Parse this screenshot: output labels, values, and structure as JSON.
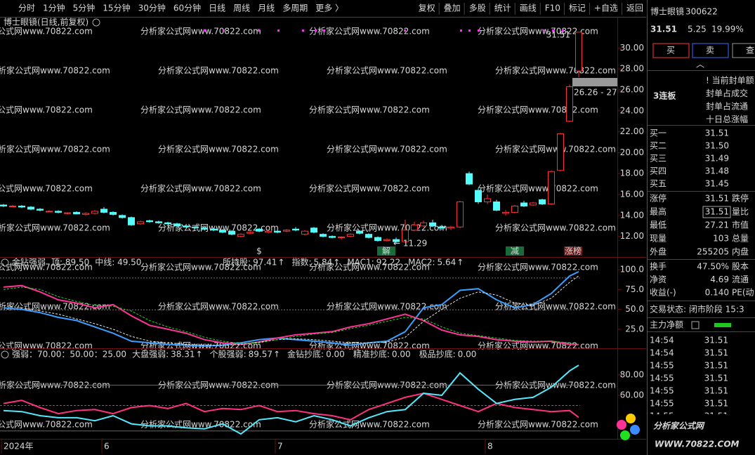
{
  "watermark": "分析家公式网www.70822.com",
  "toolbar": {
    "periods": [
      "分时",
      "1分钟",
      "5分钟",
      "15分钟",
      "30分钟",
      "60分钟",
      "日线",
      "周线",
      "月线",
      "多周期",
      "更多 〉"
    ],
    "active": 6,
    "tools": [
      "复权",
      "叠加",
      "多股",
      "统计",
      "画线",
      "F10",
      "标记",
      "+自选",
      "返回"
    ]
  },
  "chart_data": [
    {
      "type": "candlestick",
      "title": "博士眼镜(日线,前复权)",
      "up_color": "#ff3232",
      "down_color": "#54fcfc",
      "candles": [
        [
          15.0,
          15.1,
          14.8,
          14.9
        ],
        [
          14.9,
          15.0,
          14.8,
          14.9
        ],
        [
          14.9,
          15.0,
          14.7,
          14.8
        ],
        [
          14.8,
          14.9,
          14.5,
          14.6
        ],
        [
          14.6,
          14.7,
          14.4,
          14.5
        ],
        [
          14.4,
          14.5,
          14.3,
          14.4
        ],
        [
          14.4,
          14.5,
          14.2,
          14.3
        ],
        [
          14.2,
          14.3,
          14.1,
          14.25
        ],
        [
          14.3,
          14.4,
          14.1,
          14.15
        ],
        [
          14.1,
          14.3,
          14.0,
          14.2
        ],
        [
          14.2,
          14.5,
          14.1,
          14.4
        ],
        [
          14.6,
          14.8,
          14.2,
          14.3
        ],
        [
          14.3,
          14.4,
          14.0,
          14.1
        ],
        [
          14.0,
          14.1,
          13.7,
          13.8
        ],
        [
          13.8,
          13.9,
          13.0,
          13.1
        ],
        [
          13.2,
          13.5,
          13.1,
          13.4
        ],
        [
          13.5,
          13.6,
          13.3,
          13.4
        ],
        [
          13.4,
          13.5,
          13.2,
          13.3
        ],
        [
          13.3,
          13.4,
          13.1,
          13.2
        ],
        [
          13.2,
          13.3,
          12.9,
          13.0
        ],
        [
          13.0,
          13.1,
          12.8,
          12.9
        ],
        [
          12.9,
          13.0,
          12.7,
          12.85
        ],
        [
          12.8,
          12.9,
          12.6,
          12.7
        ],
        [
          12.7,
          12.8,
          12.5,
          12.6
        ],
        [
          12.6,
          12.7,
          12.3,
          12.4
        ],
        [
          12.5,
          12.6,
          12.1,
          12.2
        ],
        [
          12.0,
          12.3,
          11.9,
          12.2
        ],
        [
          12.3,
          12.5,
          12.2,
          12.4
        ],
        [
          12.7,
          12.8,
          12.4,
          12.5
        ],
        [
          12.4,
          12.6,
          12.3,
          12.5
        ],
        [
          12.5,
          12.6,
          12.3,
          12.4
        ],
        [
          12.5,
          12.7,
          12.4,
          12.6
        ],
        [
          12.7,
          12.9,
          12.5,
          12.6
        ],
        [
          12.2,
          12.6,
          12.1,
          12.5
        ],
        [
          12.8,
          12.9,
          12.3,
          12.4
        ],
        [
          12.2,
          12.3,
          11.9,
          12.0
        ],
        [
          12.0,
          12.1,
          11.8,
          11.9
        ],
        [
          11.9,
          12.0,
          11.7,
          11.95
        ],
        [
          12.0,
          12.3,
          11.9,
          12.2
        ],
        [
          12.5,
          12.6,
          12.2,
          12.3
        ],
        [
          12.2,
          12.3,
          11.8,
          11.9
        ],
        [
          11.9,
          12.0,
          11.5,
          11.6
        ],
        [
          11.6,
          11.8,
          11.5,
          11.7
        ],
        [
          11.7,
          11.9,
          11.29,
          11.5
        ],
        [
          11.5,
          13.6,
          11.4,
          12.6
        ],
        [
          12.6,
          13.4,
          12.5,
          13.1
        ],
        [
          13.0,
          13.5,
          12.9,
          13.3
        ],
        [
          13.3,
          13.6,
          12.9,
          13.0
        ],
        [
          12.9,
          13.1,
          12.6,
          12.8
        ],
        [
          12.8,
          13.0,
          12.6,
          12.9
        ],
        [
          12.9,
          15.4,
          12.8,
          15.3
        ],
        [
          18.0,
          18.2,
          16.9,
          17.0
        ],
        [
          16.4,
          16.6,
          15.1,
          15.3
        ],
        [
          15.3,
          16.0,
          15.1,
          15.6
        ],
        [
          15.3,
          15.5,
          14.4,
          14.5
        ],
        [
          14.2,
          14.5,
          14.0,
          14.3
        ],
        [
          14.3,
          15.0,
          14.2,
          14.9
        ],
        [
          15.2,
          15.4,
          14.8,
          14.9
        ],
        [
          15.0,
          15.3,
          14.9,
          15.2
        ],
        [
          15.5,
          15.6,
          15.0,
          15.1
        ],
        [
          15.1,
          18.3,
          15.0,
          18.2
        ],
        [
          18.3,
          21.9,
          18.2,
          21.8
        ],
        [
          23.0,
          26.5,
          22.9,
          26.3
        ],
        [
          27.8,
          31.51,
          27.21,
          31.51
        ]
      ],
      "ylim": [
        10.1,
        31.9
      ],
      "yticks": [
        {
          "value": 30,
          "label": "30.00"
        },
        {
          "value": 28,
          "label": "28.00"
        },
        {
          "value": 26,
          "label": "26.00"
        },
        {
          "value": 24,
          "label": "24.00"
        },
        {
          "value": 22,
          "label": "22.00"
        },
        {
          "value": 20,
          "label": "20.00"
        },
        {
          "value": 18,
          "label": "18.00"
        },
        {
          "value": 16,
          "label": "16.00"
        },
        {
          "value": 14,
          "label": "14.00"
        },
        {
          "value": 12,
          "label": "12.00"
        }
      ],
      "annotations": {
        "high": "31.51",
        "low": "← 11.29",
        "price_tag": "26.26 - 27"
      },
      "markers": [
        "$",
        "解",
        "减",
        "涨榜"
      ],
      "xlabels": [
        "2024年",
        "6",
        "7",
        "8"
      ]
    },
    {
      "type": "line",
      "title": "金钻强弱",
      "label_sep": ":",
      "reference_lines": [
        {
          "value": 89.5,
          "label": "顶: 89.50"
        },
        {
          "value": 49.5,
          "label": "中线: 49.50"
        }
      ],
      "ylim": [
        2,
        105.3
      ],
      "yticks": [
        {
          "value": 100,
          "label": "100.0"
        },
        {
          "value": 75,
          "label": "75.0"
        },
        {
          "value": 50,
          "label": "50.0"
        },
        {
          "value": 25,
          "label": "25.0"
        }
      ],
      "x": [
        0,
        2,
        4,
        6,
        8,
        10,
        12,
        14,
        16,
        18,
        20,
        22,
        24,
        26,
        28,
        30,
        32,
        34,
        36,
        38,
        40,
        42,
        44,
        46,
        48,
        50,
        52,
        54,
        56,
        58,
        60,
        62,
        63
      ],
      "series": [
        {
          "name": "所持股",
          "color": "#3aa0ff",
          "trend": "↑",
          "values": [
            52,
            50,
            46,
            40,
            36,
            28,
            20,
            10,
            8,
            6,
            5,
            4,
            5,
            8,
            12,
            14,
            12,
            10,
            8,
            5,
            8,
            10,
            22,
            52,
            56,
            74,
            76,
            62,
            52,
            56,
            70,
            92,
            97.41
          ]
        },
        {
          "name": "指数",
          "color": "#ff3296",
          "trend": "↑",
          "values": [
            78,
            80,
            72,
            62,
            58,
            52,
            56,
            42,
            30,
            25,
            20,
            12,
            8,
            6,
            9,
            14,
            18,
            20,
            22,
            28,
            32,
            38,
            44,
            36,
            24,
            18,
            16,
            12,
            10,
            9,
            10,
            6,
            5.84
          ]
        },
        {
          "name": "MAC1",
          "color": "#e8e8e8",
          "values": [
            55,
            52,
            48,
            44,
            38,
            32,
            25,
            16,
            10,
            8,
            6,
            5,
            5,
            6,
            9,
            12,
            13,
            12,
            10,
            8,
            8,
            9,
            15,
            35,
            50,
            64,
            72,
            68,
            58,
            55,
            64,
            84,
            92.22
          ]
        },
        {
          "name": "MAC2",
          "color": "#22dd22",
          "trend": "↑",
          "values": [
            75,
            78,
            75,
            66,
            60,
            55,
            54,
            48,
            36,
            28,
            22,
            15,
            10,
            7,
            8,
            12,
            16,
            19,
            21,
            26,
            30,
            35,
            40,
            38,
            28,
            20,
            17,
            14,
            11,
            10,
            10,
            8,
            5.64
          ]
        }
      ]
    },
    {
      "type": "line",
      "title": "强弱：70.00：50.00：25.00",
      "label_sep": ":",
      "levels": [
        70,
        50,
        25
      ],
      "ylim": [
        17.2,
        93.8
      ],
      "yticks": [
        {
          "value": 80,
          "label": "80.00"
        },
        {
          "value": 60,
          "label": "60.00"
        }
      ],
      "x": [
        0,
        2,
        4,
        6,
        8,
        10,
        12,
        14,
        16,
        18,
        20,
        22,
        24,
        26,
        28,
        30,
        32,
        34,
        36,
        38,
        40,
        42,
        44,
        46,
        48,
        50,
        52,
        54,
        56,
        58,
        60,
        62,
        63
      ],
      "series": [
        {
          "name": "大盘强弱",
          "color": "#ff3280",
          "trend": "↑",
          "values": [
            52,
            55,
            48,
            42,
            45,
            46,
            42,
            48,
            50,
            47,
            52,
            44,
            47,
            46,
            50,
            44,
            45,
            42,
            40,
            36,
            46,
            52,
            58,
            62,
            56,
            50,
            44,
            52,
            48,
            46,
            44,
            45,
            38.31
          ]
        },
        {
          "name": "个股强弱",
          "color": "#54e8fc",
          "trend": "↑",
          "values": [
            45,
            44,
            40,
            38,
            38,
            35,
            40,
            32,
            30,
            30,
            28,
            27,
            32,
            22,
            36,
            38,
            34,
            40,
            36,
            30,
            38,
            44,
            46,
            62,
            60,
            82,
            66,
            52,
            56,
            58,
            68,
            84,
            89.57
          ]
        }
      ],
      "indicators": [
        {
          "name": "金钻抄底",
          "color": "#e040e0",
          "value": 0,
          "label": "0.00"
        },
        {
          "name": "精准抄底",
          "color": "#3a8cff",
          "value": 0,
          "label": "0.00"
        },
        {
          "name": "极品抄底",
          "color": "#ff3232",
          "value": 0,
          "label": "0.00"
        }
      ]
    }
  ],
  "quote": {
    "name": "博士眼镜",
    "code": "300622",
    "price": "31.51",
    "change": "5.25",
    "pct": "19.99%",
    "buttons": [
      "买",
      "卖",
      "查"
    ],
    "collapse": "︿",
    "board": "3连板",
    "seal_info": [
      "! 当前封单额",
      "封单占成交",
      "封单占流通",
      "十日总涨幅"
    ],
    "bids": [
      [
        "买一",
        "31.51"
      ],
      [
        "买二",
        "31.50"
      ],
      [
        "买三",
        "31.49"
      ],
      [
        "买四",
        "31.48"
      ],
      [
        "买五",
        "31.45"
      ]
    ],
    "stats": [
      [
        "涨停",
        "31.51",
        "跌停"
      ],
      [
        "最高",
        "31.51",
        "量比"
      ],
      [
        "最低",
        "27.21",
        "市值"
      ],
      [
        "现量",
        "103",
        "总量"
      ],
      [
        "外盘",
        "255205",
        "内盘"
      ]
    ],
    "stats2": [
      [
        "换手",
        "47.50%",
        "股本"
      ],
      [
        "净资",
        "4.69",
        "流通"
      ],
      [
        "收益(-)",
        "0.140",
        "PE(动"
      ]
    ],
    "status": "交易状态: 闭市阶段 15:3",
    "main_flow": "主力净额",
    "trades": [
      [
        "14:54",
        "31.51"
      ],
      [
        "14:54",
        "31.51"
      ],
      [
        "14:55",
        "31.51"
      ],
      [
        "14:55",
        "31.51"
      ],
      [
        "14:55",
        "31.51"
      ],
      [
        "14:55",
        "31.51"
      ],
      [
        "14:55",
        "31.51"
      ]
    ]
  },
  "logo": {
    "name": "分析家公式网",
    "url": "WWW.70822.COM"
  }
}
